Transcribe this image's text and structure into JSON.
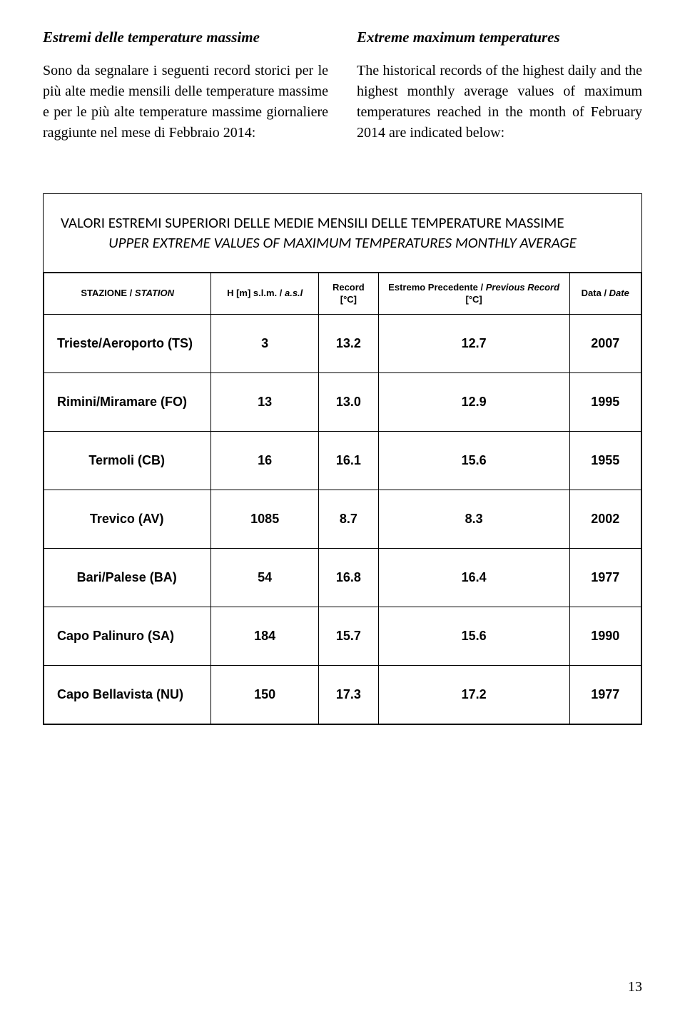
{
  "left": {
    "heading": "Estremi delle temperature massime",
    "body": "Sono da segnalare i seguenti record storici per le più alte medie mensili delle temperature massime e per le più alte temperature massime giornaliere raggiunte nel mese di Febbraio 2014:"
  },
  "right": {
    "heading": "Extreme maximum  temperatures",
    "body": "The historical records of the highest daily and the highest monthly average values of maximum temperatures reached in the month of February 2014 are indicated below:"
  },
  "table": {
    "title1": "VALORI ESTREMI SUPERIORI DELLE MEDIE MENSILI DELLE TEMPERATURE MASSIME",
    "title2": "UPPER EXTREME VALUES OF MAXIMUM TEMPERATURES MONTHLY AVERAGE",
    "headers": {
      "station": "STAZIONE / ",
      "station_it": "STATION",
      "h": "H [m]  s.l.m. / ",
      "h_it": "a.s.l",
      "record_l1": "Record",
      "record_l2": "[°C]",
      "prev_l1a": "Estremo  Precedente / ",
      "prev_l1b": "Previous Record",
      "prev_l2": "[°C]",
      "date": "Data / ",
      "date_it": "Date"
    },
    "rows": [
      {
        "station": "Trieste/Aeroporto (TS)",
        "h": "3",
        "rec": "13.2",
        "prev": "12.7",
        "date": "2007",
        "align": "left"
      },
      {
        "station": "Rimini/Miramare (FO)",
        "h": "13",
        "rec": "13.0",
        "prev": "12.9",
        "date": "1995",
        "align": "left"
      },
      {
        "station": "Termoli (CB)",
        "h": "16",
        "rec": "16.1",
        "prev": "15.6",
        "date": "1955",
        "align": "center"
      },
      {
        "station": "Trevico (AV)",
        "h": "1085",
        "rec": "8.7",
        "prev": "8.3",
        "date": "2002",
        "align": "center"
      },
      {
        "station": "Bari/Palese (BA)",
        "h": "54",
        "rec": "16.8",
        "prev": "16.4",
        "date": "1977",
        "align": "center"
      },
      {
        "station": "Capo Palinuro (SA)",
        "h": "184",
        "rec": "15.7",
        "prev": "15.6",
        "date": "1990",
        "align": "left"
      },
      {
        "station": "Capo Bellavista (NU)",
        "h": "150",
        "rec": "17.3",
        "prev": "17.2",
        "date": "1977",
        "align": "left"
      }
    ]
  },
  "page_num": "13"
}
